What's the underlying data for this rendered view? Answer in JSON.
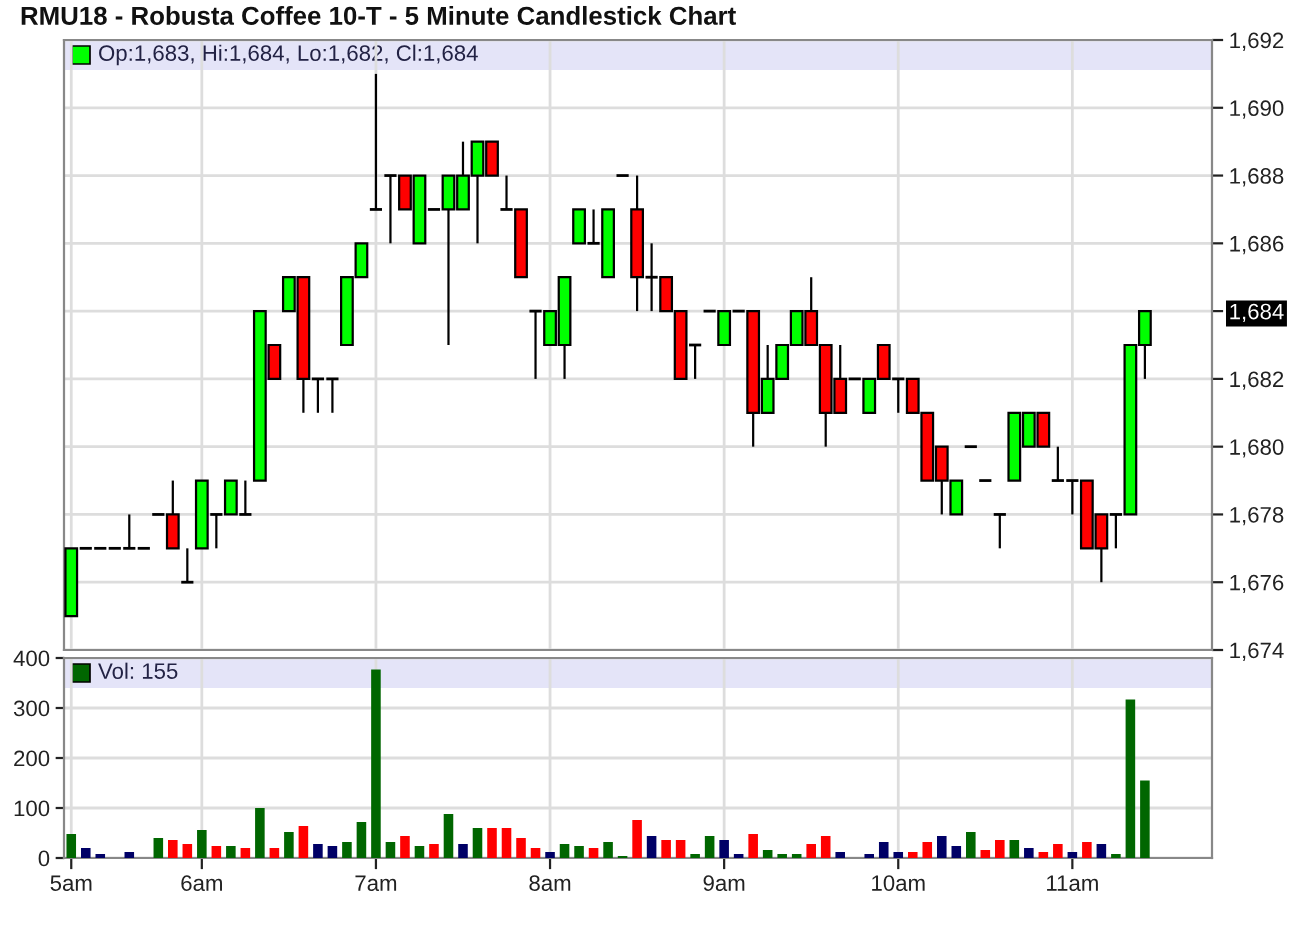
{
  "chart_data": [
    {
      "type": "candlestick",
      "title": "RMU18 - Robusta Coffee 10-T - 5 Minute Candlestick Chart",
      "annotations": [
        "Op:1,683, Hi:1,684, Lo:1,682, Cl:1,684"
      ],
      "categories": [
        null,
        null,
        null,
        null,
        null,
        null,
        null,
        null,
        null,
        null,
        null,
        null,
        null,
        null,
        null,
        null,
        null,
        null,
        null,
        null,
        null,
        null,
        null,
        null,
        null,
        null,
        null,
        null,
        null,
        null,
        null,
        null,
        null,
        null,
        null,
        null,
        null,
        null,
        null,
        null,
        null,
        null,
        null,
        null,
        null,
        null,
        null,
        null,
        null,
        null,
        null,
        null,
        null,
        null,
        null,
        null,
        null,
        null,
        null,
        null,
        null,
        null,
        null,
        null,
        null,
        null,
        null,
        null,
        null,
        null,
        null,
        null,
        null,
        null,
        null
      ],
      "ohlc": [
        [
          1675,
          1677,
          1675,
          1677
        ],
        [
          1677,
          1677,
          1677,
          1677
        ],
        [
          1677,
          1677,
          1677,
          1677
        ],
        [
          1677,
          1677,
          1677,
          1677
        ],
        [
          1677,
          1678,
          1677,
          1677
        ],
        [
          1677,
          1677,
          1677,
          1677
        ],
        [
          1678,
          1678,
          1678,
          1678
        ],
        [
          1678,
          1679,
          1677,
          1677
        ],
        [
          1676,
          1677,
          1676,
          1676
        ],
        [
          1677,
          1679,
          1677,
          1679
        ],
        [
          1678,
          1678,
          1677,
          1678
        ],
        [
          1678,
          1679,
          1678,
          1679
        ],
        [
          1678,
          1679,
          1678,
          1678
        ],
        [
          1679,
          1684,
          1679,
          1684
        ],
        [
          1683,
          1683,
          1682,
          1682
        ],
        [
          1684,
          1685,
          1684,
          1685
        ],
        [
          1685,
          1685,
          1681,
          1682
        ],
        [
          1682,
          1682,
          1681,
          1682
        ],
        [
          1682,
          1682,
          1681,
          1682
        ],
        [
          1683,
          1685,
          1683,
          1685
        ],
        [
          1685,
          1686,
          1685,
          1686
        ],
        [
          1687,
          1691,
          1687,
          1687
        ],
        [
          1688,
          1688,
          1686,
          1688
        ],
        [
          1688,
          1688,
          1687,
          1687
        ],
        [
          1686,
          1688,
          1686,
          1688
        ],
        [
          1687,
          1687,
          1687,
          1687
        ],
        [
          1687,
          1688,
          1683,
          1688
        ],
        [
          1687,
          1689,
          1687,
          1688
        ],
        [
          1688,
          1689,
          1686,
          1689
        ],
        [
          1689,
          1689,
          1688,
          1688
        ],
        [
          1687,
          1688,
          1687,
          1687
        ],
        [
          1687,
          1687,
          1685,
          1685
        ],
        [
          1684,
          1684,
          1682,
          1684
        ],
        [
          1683,
          1684,
          1683,
          1684
        ],
        [
          1683,
          1685,
          1682,
          1685
        ],
        [
          1686,
          1687,
          1686,
          1687
        ],
        [
          1686,
          1687,
          1686,
          1686
        ],
        [
          1685,
          1687,
          1685,
          1687
        ],
        [
          1688,
          1688,
          1688,
          1688
        ],
        [
          1687,
          1688,
          1684,
          1685
        ],
        [
          1685,
          1686,
          1684,
          1685
        ],
        [
          1685,
          1685,
          1684,
          1684
        ],
        [
          1684,
          1684,
          1682,
          1682
        ],
        [
          1683,
          1683,
          1682,
          1683
        ],
        [
          1684,
          1684,
          1684,
          1684
        ],
        [
          1683,
          1684,
          1683,
          1684
        ],
        [
          1684,
          1684,
          1684,
          1684
        ],
        [
          1684,
          1684,
          1680,
          1681
        ],
        [
          1681,
          1683,
          1681,
          1682
        ],
        [
          1682,
          1683,
          1682,
          1683
        ],
        [
          1683,
          1684,
          1683,
          1684
        ],
        [
          1684,
          1685,
          1683,
          1683
        ],
        [
          1683,
          1683,
          1680,
          1681
        ],
        [
          1682,
          1683,
          1681,
          1681
        ],
        [
          1682,
          1682,
          1682,
          1682
        ],
        [
          1681,
          1682,
          1681,
          1682
        ],
        [
          1683,
          1683,
          1682,
          1682
        ],
        [
          1682,
          1682,
          1681,
          1682
        ],
        [
          1682,
          1682,
          1681,
          1681
        ],
        [
          1681,
          1681,
          1679,
          1679
        ],
        [
          1680,
          1680,
          1678,
          1679
        ],
        [
          1678,
          1679,
          1678,
          1679
        ],
        [
          1680,
          1680,
          1680,
          1680
        ],
        [
          1679,
          1679,
          1679,
          1679
        ],
        [
          1678,
          1678,
          1677,
          1678
        ],
        [
          1679,
          1681,
          1679,
          1681
        ],
        [
          1680,
          1681,
          1680,
          1681
        ],
        [
          1681,
          1681,
          1680,
          1680
        ],
        [
          1679,
          1680,
          1679,
          1679
        ],
        [
          1679,
          1679,
          1678,
          1679
        ],
        [
          1679,
          1679,
          1677,
          1677
        ],
        [
          1678,
          1678,
          1676,
          1677
        ],
        [
          1678,
          1678,
          1677,
          1678
        ],
        [
          1678,
          1683,
          1678,
          1683
        ],
        [
          1683,
          1684,
          1682,
          1684
        ]
      ],
      "colors": [
        "#00ff00",
        "#000000",
        "#000000",
        "#000000",
        "#000000",
        "#000000",
        "#000000",
        "#ff0000",
        "#000000",
        "#00ff00",
        "#000000",
        "#00ff00",
        "#000000",
        "#00ff00",
        "#ff0000",
        "#00ff00",
        "#ff0000",
        "#000000",
        "#000000",
        "#00ff00",
        "#00ff00",
        "#000000",
        "#000000",
        "#ff0000",
        "#00ff00",
        "#000000",
        "#00ff00",
        "#00ff00",
        "#00ff00",
        "#ff0000",
        "#000000",
        "#ff0000",
        "#000000",
        "#00ff00",
        "#00ff00",
        "#00ff00",
        "#000000",
        "#00ff00",
        "#000000",
        "#ff0000",
        "#000000",
        "#ff0000",
        "#ff0000",
        "#000000",
        "#000000",
        "#00ff00",
        "#000000",
        "#ff0000",
        "#00ff00",
        "#00ff00",
        "#00ff00",
        "#ff0000",
        "#ff0000",
        "#ff0000",
        "#000000",
        "#00ff00",
        "#ff0000",
        "#000000",
        "#ff0000",
        "#ff0000",
        "#ff0000",
        "#00ff00",
        "#000000",
        "#000000",
        "#000000",
        "#00ff00",
        "#00ff00",
        "#ff0000",
        "#000000",
        "#000000",
        "#ff0000",
        "#ff0000",
        "#000000",
        "#00ff00",
        "#00ff00"
      ],
      "ylim": [
        1674,
        1692
      ],
      "yticks": [
        {
          "value": 1674,
          "label": "1,674"
        },
        {
          "value": 1676,
          "label": "1,676"
        },
        {
          "value": 1678,
          "label": "1,678"
        },
        {
          "value": 1680,
          "label": "1,680"
        },
        {
          "value": 1682,
          "label": "1,682"
        },
        {
          "value": 1684,
          "label": "1,684"
        },
        {
          "value": 1686,
          "label": "1,686"
        },
        {
          "value": 1688,
          "label": "1,688"
        },
        {
          "value": 1690,
          "label": "1,690"
        },
        {
          "value": 1692,
          "label": "1,692"
        }
      ],
      "grid": true,
      "tick_labels": "y"
    },
    {
      "type": "bar",
      "annotations": [
        "Vol: 155"
      ],
      "categories": [
        "5am",
        null,
        null,
        null,
        null,
        null,
        null,
        null,
        null,
        "6am",
        null,
        null,
        null,
        null,
        null,
        null,
        null,
        null,
        null,
        null,
        null,
        "7am",
        null,
        null,
        null,
        null,
        null,
        null,
        null,
        null,
        null,
        null,
        null,
        "8am",
        null,
        null,
        null,
        null,
        null,
        null,
        null,
        null,
        null,
        null,
        null,
        "9am",
        null,
        null,
        null,
        null,
        null,
        null,
        null,
        null,
        null,
        null,
        null,
        "10am",
        null,
        null,
        null,
        null,
        null,
        null,
        null,
        null,
        null,
        null,
        null,
        "11am",
        null,
        null,
        null,
        null,
        null
      ],
      "values": [
        48,
        20,
        8,
        null,
        12,
        null,
        40,
        36,
        28,
        56,
        24,
        24,
        20,
        100,
        20,
        52,
        64,
        28,
        24,
        32,
        72,
        377,
        32,
        44,
        24,
        28,
        88,
        28,
        60,
        60,
        60,
        40,
        20,
        12,
        28,
        24,
        20,
        32,
        4,
        76,
        44,
        36,
        36,
        8,
        44,
        36,
        8,
        48,
        16,
        8,
        8,
        28,
        44,
        12,
        null,
        8,
        32,
        12,
        12,
        32,
        44,
        24,
        52,
        16,
        36,
        36,
        20,
        12,
        28,
        12,
        32,
        28,
        8,
        317,
        155
      ],
      "colors": [
        "#006600",
        "#000066",
        "#000066",
        "#000066",
        "#000066",
        "#000066",
        "#006600",
        "#ff0000",
        "#ff0000",
        "#006600",
        "#ff0000",
        "#006600",
        "#ff0000",
        "#006600",
        "#ff0000",
        "#006600",
        "#ff0000",
        "#000066",
        "#000066",
        "#006600",
        "#006600",
        "#006600",
        "#006600",
        "#ff0000",
        "#006600",
        "#ff0000",
        "#006600",
        "#000066",
        "#006600",
        "#ff0000",
        "#ff0000",
        "#ff0000",
        "#ff0000",
        "#000066",
        "#006600",
        "#006600",
        "#ff0000",
        "#006600",
        "#006600",
        "#ff0000",
        "#000066",
        "#ff0000",
        "#ff0000",
        "#006600",
        "#006600",
        "#000066",
        "#000066",
        "#ff0000",
        "#006600",
        "#006600",
        "#006600",
        "#ff0000",
        "#ff0000",
        "#000066",
        "#006600",
        "#000066",
        "#000066",
        "#000066",
        "#ff0000",
        "#ff0000",
        "#000066",
        "#000066",
        "#006600",
        "#ff0000",
        "#ff0000",
        "#006600",
        "#000066",
        "#ff0000",
        "#ff0000",
        "#000066",
        "#ff0000",
        "#000066",
        "#006600",
        "#006600",
        "#006600"
      ],
      "ylim": [
        0,
        400
      ],
      "yticks": [
        0,
        100,
        200,
        300,
        400
      ],
      "grid": true
    }
  ]
}
